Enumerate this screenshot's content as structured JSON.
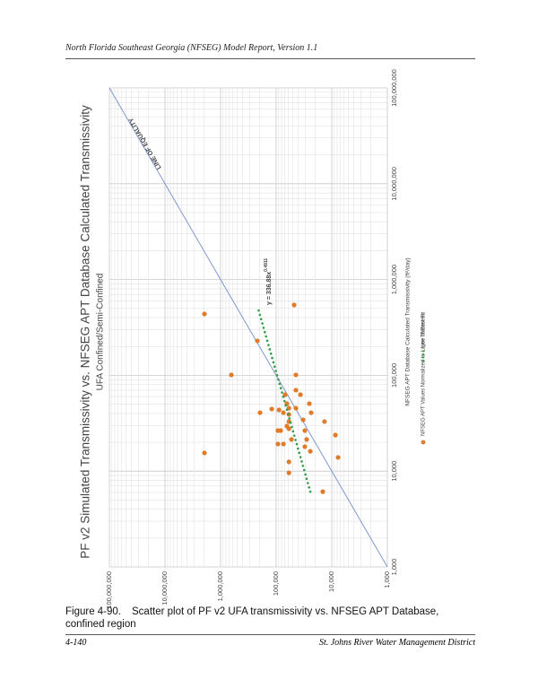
{
  "header": {
    "title": "North Florida Southeast Georgia (NFSEG) Model Report, Version 1.1"
  },
  "chart_data": {
    "type": "scatter",
    "title": "PF v2 Simulated Transmissivity vs. NFSEG APT Database Calculated Transmissivity",
    "subtitle": "UFA Confined/Semi-Confined",
    "x_label": "NFSEG APT Database Calculated Transmissivity (ft²/day)",
    "log_x": true,
    "log_y": true,
    "grid": true,
    "xlim": [
      1000,
      100000000
    ],
    "ylim": [
      1000,
      100000000
    ],
    "xticks": [
      {
        "value": 1000,
        "label": "1,000"
      },
      {
        "value": 10000,
        "label": "10,000"
      },
      {
        "value": 100000,
        "label": "100,000"
      },
      {
        "value": 1000000,
        "label": "1,000,000"
      },
      {
        "value": 10000000,
        "label": "10,000,000"
      },
      {
        "value": 100000000,
        "label": "100,000,000"
      }
    ],
    "yticks": [
      {
        "value": 1000,
        "label": "1,000"
      },
      {
        "value": 10000,
        "label": "10,000"
      },
      {
        "value": 100000,
        "label": "100,000"
      },
      {
        "value": 1000000,
        "label": "1,000,000"
      },
      {
        "value": 10000000,
        "label": "10,000,000"
      },
      {
        "value": 100000000,
        "label": "100,000,000"
      }
    ],
    "series": [
      {
        "name": "NFSEG APT Values Normalized to Layer Thickness",
        "color": "#e07b2a",
        "x": [
          437000,
          15500,
          101000,
          229000,
          542000,
          40700,
          44500,
          43500,
          26500,
          19200,
          19200,
          62800,
          50600,
          45400,
          39000,
          32900,
          29500,
          27700,
          21400,
          12500,
          9600,
          101000,
          70000,
          62800,
          45400,
          34300,
          26500,
          21400,
          50600,
          40700,
          18000,
          16100,
          32900,
          23800,
          13900,
          6100,
          26500,
          40700
        ],
        "values": [
          1950000,
          1950000,
          640000,
          218000,
          47500,
          195000,
          120000,
          89000,
          93000,
          93000,
          74000,
          69000,
          64000,
          59000,
          59000,
          59000,
          64000,
          59000,
          53000,
          59000,
          59000,
          44200,
          44200,
          36600,
          44200,
          32800,
          30500,
          28300,
          25300,
          23500,
          30500,
          24300,
          13500,
          8600,
          7700,
          14500,
          83000,
          74000
        ]
      },
      {
        "name": "Line of Best Fit",
        "color": "#2e9e44",
        "x": [
          6100,
          520000
        ],
        "values": [
          24300,
          216000
        ]
      }
    ],
    "equality_line": {
      "label": "LINE OF EQUALITY",
      "color": "#8199cc",
      "x": [
        1000,
        100000000
      ],
      "values": [
        1000,
        100000000
      ]
    },
    "equation": {
      "text": "y = 336.88x",
      "exponent": "0.4911"
    }
  },
  "caption": {
    "label": "Figure 4-90.",
    "text": "Scatter plot of PF v2 UFA transmissivity vs. NFSEG APT Database, confined region"
  },
  "footer": {
    "page": "4-140",
    "organization": "St. Johns River Water Management District"
  }
}
